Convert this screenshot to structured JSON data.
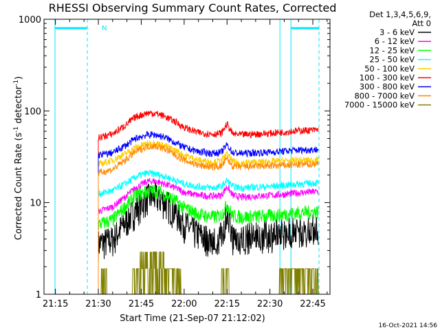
{
  "chart_data": {
    "type": "line",
    "title": "RHESSI Observing Summary Count Rates, Corrected",
    "xlabel": "Start Time (21-Sep-07 21:12:02)",
    "ylabel_main": "Corrected Count Rate (s",
    "ylabel_sup1": "-1",
    "ylabel_mid": " detector",
    "ylabel_sup2": "-1",
    "ylabel_end": ")",
    "yscale": "log",
    "ylim": [
      1,
      1000
    ],
    "xlim_minutes": [
      -4,
      96
    ],
    "x_tick_labels": [
      "21:15",
      "21:30",
      "21:45",
      "22:00",
      "22:15",
      "22:30",
      "22:45"
    ],
    "x_tick_minutes": [
      0,
      15,
      30,
      45,
      60,
      75,
      90
    ],
    "y_tick_labels": [
      "1",
      "10",
      "100",
      "1000"
    ],
    "y_tick_values": [
      1,
      10,
      100,
      1000
    ],
    "legend_header": [
      "Det 1,3,4,5,6,9,",
      "Att 0"
    ],
    "timestamp": "16-Oct-2021 14:56",
    "night_marker": "N",
    "night_intervals_minutes": [
      [
        -4,
        15
      ],
      [
        78.5,
        96
      ]
    ],
    "data_start_minute": 15,
    "data_end_minute": 92,
    "series": [
      {
        "name": "3 - 6 keV",
        "color": "#000000",
        "noise": 0.4,
        "noise_start": 52,
        "floor_drop": true,
        "points": [
          [
            15,
            3.6
          ],
          [
            20,
            4.0
          ],
          [
            25,
            6.5
          ],
          [
            28,
            8.5
          ],
          [
            32,
            11.5
          ],
          [
            35,
            11.8
          ],
          [
            38,
            10.5
          ],
          [
            42,
            8.0
          ],
          [
            45,
            6.0
          ],
          [
            48,
            5.0
          ],
          [
            52,
            4.2
          ],
          [
            55,
            4.2
          ],
          [
            58,
            4.4
          ],
          [
            60,
            7.8
          ],
          [
            62,
            4.3
          ],
          [
            65,
            4.2
          ],
          [
            70,
            4.5
          ],
          [
            75,
            4.6
          ],
          [
            80,
            5.0
          ],
          [
            85,
            5.2
          ],
          [
            92,
            5.5
          ]
        ]
      },
      {
        "name": "6 - 12 keV",
        "color": "#ff00ff",
        "points": [
          [
            15,
            8.0
          ],
          [
            20,
            9.0
          ],
          [
            25,
            12.0
          ],
          [
            28,
            14.5
          ],
          [
            32,
            17.0
          ],
          [
            35,
            17.2
          ],
          [
            38,
            16.0
          ],
          [
            42,
            14.5
          ],
          [
            45,
            13.0
          ],
          [
            50,
            12.0
          ],
          [
            55,
            11.8
          ],
          [
            58,
            12.0
          ],
          [
            60,
            15.0
          ],
          [
            62,
            12.0
          ],
          [
            65,
            11.5
          ],
          [
            70,
            11.8
          ],
          [
            75,
            12.0
          ],
          [
            80,
            12.3
          ],
          [
            85,
            12.8
          ],
          [
            92,
            13.2
          ]
        ]
      },
      {
        "name": "12 - 25 keV",
        "color": "#00ff00",
        "noise": 0.18,
        "points": [
          [
            15,
            5.8
          ],
          [
            20,
            6.5
          ],
          [
            25,
            9.5
          ],
          [
            28,
            12.0
          ],
          [
            32,
            13.2
          ],
          [
            35,
            13.5
          ],
          [
            38,
            12.5
          ],
          [
            42,
            10.5
          ],
          [
            45,
            8.8
          ],
          [
            50,
            7.5
          ],
          [
            55,
            7.0
          ],
          [
            58,
            7.3
          ],
          [
            60,
            9.5
          ],
          [
            62,
            7.2
          ],
          [
            65,
            7.0
          ],
          [
            70,
            7.1
          ],
          [
            75,
            7.2
          ],
          [
            80,
            7.5
          ],
          [
            85,
            7.8
          ],
          [
            92,
            8.0
          ]
        ]
      },
      {
        "name": "25 - 50 keV",
        "color": "#00ffff",
        "points": [
          [
            15,
            12.5
          ],
          [
            20,
            13.5
          ],
          [
            25,
            16.5
          ],
          [
            28,
            19.0
          ],
          [
            32,
            21.0
          ],
          [
            35,
            20.5
          ],
          [
            38,
            19.5
          ],
          [
            42,
            17.5
          ],
          [
            45,
            16.0
          ],
          [
            50,
            15.0
          ],
          [
            55,
            14.5
          ],
          [
            58,
            15.0
          ],
          [
            60,
            17.5
          ],
          [
            62,
            15.0
          ],
          [
            65,
            14.5
          ],
          [
            70,
            14.8
          ],
          [
            75,
            15.0
          ],
          [
            80,
            15.5
          ],
          [
            85,
            16.0
          ],
          [
            92,
            16.5
          ]
        ]
      },
      {
        "name": "50 - 100 keV",
        "color": "#ffcc00",
        "points": [
          [
            15,
            26
          ],
          [
            20,
            29
          ],
          [
            25,
            35
          ],
          [
            28,
            40
          ],
          [
            32,
            44
          ],
          [
            35,
            44.5
          ],
          [
            38,
            42
          ],
          [
            42,
            37
          ],
          [
            45,
            33
          ],
          [
            50,
            29
          ],
          [
            55,
            27.5
          ],
          [
            58,
            28.5
          ],
          [
            60,
            34
          ],
          [
            62,
            28
          ],
          [
            65,
            27
          ],
          [
            70,
            27.5
          ],
          [
            75,
            28
          ],
          [
            80,
            28.5
          ],
          [
            85,
            29
          ],
          [
            92,
            29
          ]
        ]
      },
      {
        "name": "100 - 300 keV",
        "color": "#ff0000",
        "points": [
          [
            15,
            51
          ],
          [
            20,
            56
          ],
          [
            25,
            72
          ],
          [
            28,
            86
          ],
          [
            32,
            95
          ],
          [
            35,
            94
          ],
          [
            38,
            88
          ],
          [
            42,
            76
          ],
          [
            45,
            66
          ],
          [
            50,
            58
          ],
          [
            55,
            56
          ],
          [
            58,
            57
          ],
          [
            60,
            72
          ],
          [
            62,
            56
          ],
          [
            65,
            55
          ],
          [
            70,
            56
          ],
          [
            75,
            57
          ],
          [
            80,
            59
          ],
          [
            85,
            61
          ],
          [
            92,
            62
          ]
        ]
      },
      {
        "name": "300 - 800 keV",
        "color": "#0000ff",
        "points": [
          [
            15,
            33
          ],
          [
            20,
            35
          ],
          [
            25,
            43
          ],
          [
            28,
            50
          ],
          [
            32,
            55
          ],
          [
            35,
            55
          ],
          [
            38,
            52
          ],
          [
            42,
            45
          ],
          [
            45,
            40
          ],
          [
            50,
            36
          ],
          [
            55,
            34.5
          ],
          [
            58,
            35.5
          ],
          [
            60,
            43
          ],
          [
            62,
            35
          ],
          [
            65,
            34.5
          ],
          [
            70,
            35
          ],
          [
            75,
            35.5
          ],
          [
            80,
            36.5
          ],
          [
            85,
            37.5
          ],
          [
            92,
            38
          ]
        ]
      },
      {
        "name": "800 - 7000 keV",
        "color": "#ff8800",
        "points": [
          [
            15,
            21
          ],
          [
            20,
            23
          ],
          [
            25,
            30
          ],
          [
            28,
            36
          ],
          [
            32,
            41
          ],
          [
            35,
            41.5
          ],
          [
            38,
            39
          ],
          [
            42,
            33
          ],
          [
            45,
            29
          ],
          [
            50,
            25.5
          ],
          [
            55,
            24.5
          ],
          [
            58,
            25
          ],
          [
            60,
            30
          ],
          [
            62,
            25
          ],
          [
            65,
            24.5
          ],
          [
            70,
            25
          ],
          [
            75,
            25.2
          ],
          [
            80,
            25.5
          ],
          [
            85,
            26
          ],
          [
            92,
            26.5
          ]
        ]
      },
      {
        "name": "7000 - 15000 keV",
        "color": "#808000",
        "bursty": true,
        "points": [
          [
            15,
            1.0
          ],
          [
            92,
            1.0
          ]
        ]
      }
    ]
  }
}
